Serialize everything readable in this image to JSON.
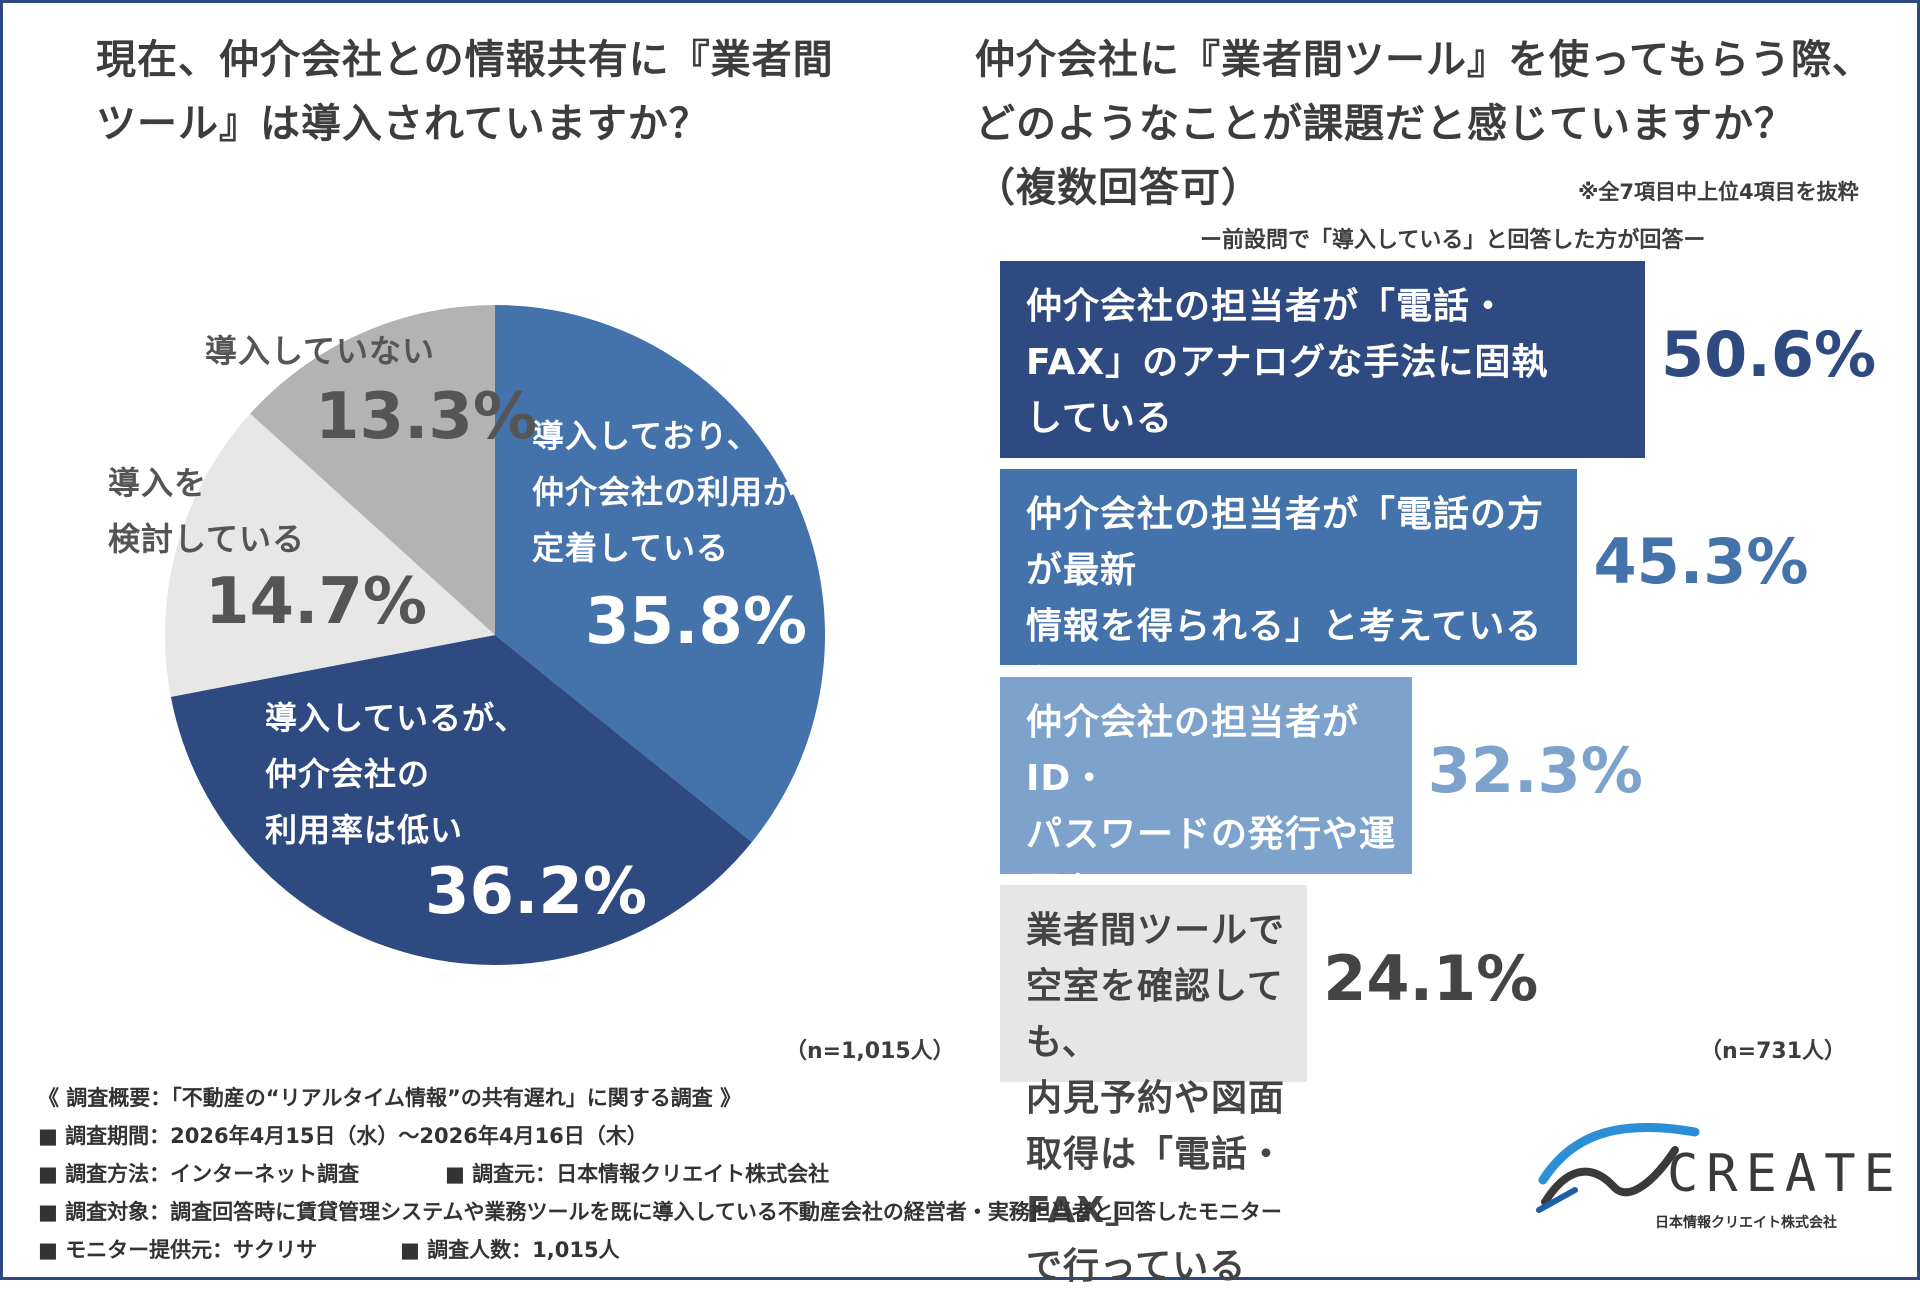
{
  "left": {
    "title": "現在、仲介会社との情報共有に『業者間\nツール』は導入されていますか？",
    "sample": "（n=1,015人）"
  },
  "right": {
    "title": "仲介会社に『業者間ツール』を使ってもらう際、\nどのようなことが課題だと感じていますか？\n（複数回答可）",
    "note": "※全7項目中上位4項目を抜粋",
    "subtitle": "ー前設問で「導入している」と回答した方が回答ー",
    "sample": "（n=731人）"
  },
  "chart_data": [
    {
      "type": "pie",
      "start_angle": "12 o'clock, clockwise",
      "categories": [
        "導入しており、\n仲介会社の利用が\n定着している",
        "導入しているが、\n仲介会社の\n利用率は低い",
        "導入を\n検討している",
        "導入していない"
      ],
      "values": [
        35.8,
        36.2,
        14.7,
        13.3
      ],
      "labels": [
        "35.8%",
        "36.2%",
        "14.7%",
        "13.3%"
      ],
      "colors": [
        "#4472aa",
        "#2e4a80",
        "#e7e7e7",
        "#b3b3b3"
      ]
    },
    {
      "type": "bar",
      "orientation": "horizontal",
      "categories": [
        "仲介会社の担当者が「電話・\nFAX」のアナログな手法に固執\nしている",
        "仲介会社の担当者が「電話の方が最新\n情報を得られる」と考えているため、\n業者間ツールを見てくれない",
        "仲介会社の担当者がID・\nパスワードの発行や運用を\n手間に感じている",
        "業者間ツールで空室を確認しても、\n内見予約や図面取得は「電話・FAX」\nで行っている"
      ],
      "values": [
        50.6,
        45.3,
        32.3,
        24.1
      ],
      "labels": [
        "50.6%",
        "45.3%",
        "32.3%",
        "24.1%"
      ],
      "colors": [
        "#2e4a80",
        "#4472aa",
        "#7da3cc",
        "#e6e6e6"
      ],
      "text_colors": [
        "#ffffff",
        "#ffffff",
        "#ffffff",
        "#444444"
      ],
      "pct_colors": [
        "#2e4a80",
        "#4472aa",
        "#7da3cc",
        "#444444"
      ],
      "xlim": [
        0,
        50.6
      ]
    }
  ],
  "footer": {
    "survey": "《 調査概要：「不動産の“リアルタイム情報”の共有遅れ」に関する調査 》",
    "period": "■ 調査期間：2026年4月15日（水）～2026年4月16日（木）",
    "method": "■ 調査方法：インターネット調査",
    "source": "■ 調査元：日本情報クリエイト株式会社",
    "target": "■ 調査対象：調査回答時に賃貸管理システムや業務ツールを既に導入している不動産会社の経営者・実務担当者と回答したモニター",
    "provider": "■ モニター提供元：サクリサ",
    "count": "■ 調査人数：1,015人"
  },
  "logo": {
    "name": "CREATE",
    "company": "日本情報クリエイト株式会社",
    "icon": "create-wave-logo-icon"
  }
}
